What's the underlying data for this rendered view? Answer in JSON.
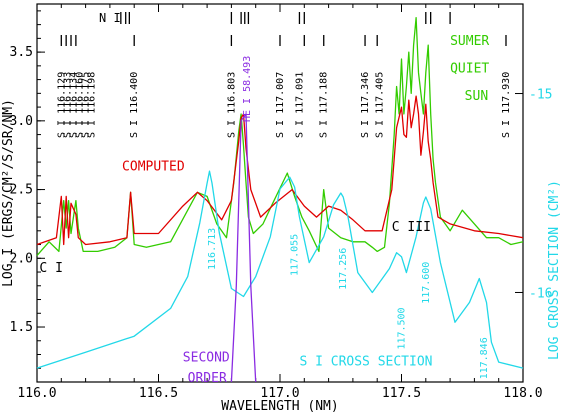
{
  "chart_data": {
    "type": "line",
    "xlabel": "WAVELENGTH (NM)",
    "ylabel_left": "LOG I (ERGS/CM²/S/SR/NM)",
    "ylabel_right": "LOG CROSS SECTION (CM²)",
    "xlim": [
      116.0,
      118.0
    ],
    "ylim_left": [
      1.1,
      3.85
    ],
    "ylim_right": [
      -16.45,
      -14.55
    ],
    "x_ticks": [
      116.0,
      116.5,
      117.0,
      117.5,
      118.0
    ],
    "x_tick_labels": [
      "116.0",
      "116.5",
      "117.0",
      "117.5",
      "118.0"
    ],
    "y_ticks_left": [
      1.5,
      2.0,
      2.5,
      3.0,
      3.5
    ],
    "y_tick_labels_left": [
      "1.5",
      "2.0",
      "2.5",
      "3.0",
      "3.5"
    ],
    "y_ticks_right": [
      -16,
      -15
    ],
    "y_tick_labels_right": [
      "-16",
      "-15"
    ],
    "colors": {
      "observed": "#33cc00",
      "computed": "#e00000",
      "cross_section": "#22d8e8",
      "second_order": "#8a2be2",
      "axes": "#000000"
    },
    "series": [
      {
        "name": "SUMER QUIET SUN",
        "axis": "left",
        "x": [
          116.0,
          116.05,
          116.09,
          116.11,
          116.12,
          116.13,
          116.14,
          116.16,
          116.17,
          116.19,
          116.25,
          116.32,
          116.37,
          116.385,
          116.4,
          116.45,
          116.55,
          116.62,
          116.66,
          116.7,
          116.74,
          116.78,
          116.81,
          116.83,
          116.84,
          116.85,
          116.86,
          116.87,
          116.89,
          116.93,
          116.97,
          117.03,
          117.06,
          117.09,
          117.12,
          117.16,
          117.18,
          117.2,
          117.25,
          117.3,
          117.35,
          117.38,
          117.4,
          117.43,
          117.45,
          117.47,
          117.48,
          117.49,
          117.5,
          117.51,
          117.52,
          117.53,
          117.54,
          117.55,
          117.56,
          117.57,
          117.58,
          117.59,
          117.6,
          117.61,
          117.62,
          117.63,
          117.64,
          117.66,
          117.7,
          117.75,
          117.8,
          117.85,
          117.9,
          117.95,
          118.0
        ],
        "y": [
          2.02,
          2.12,
          2.05,
          2.42,
          2.22,
          2.42,
          2.18,
          2.42,
          2.22,
          2.05,
          2.05,
          2.08,
          2.15,
          2.48,
          2.1,
          2.08,
          2.12,
          2.35,
          2.48,
          2.45,
          2.25,
          2.15,
          2.55,
          2.92,
          3.05,
          2.82,
          2.55,
          2.3,
          2.18,
          2.25,
          2.4,
          2.62,
          2.45,
          2.3,
          2.2,
          2.05,
          2.5,
          2.22,
          2.15,
          2.12,
          2.12,
          2.08,
          2.05,
          2.08,
          2.4,
          2.9,
          3.25,
          3.05,
          3.45,
          3.05,
          3.25,
          3.5,
          3.2,
          3.55,
          3.75,
          3.35,
          3.2,
          3.05,
          3.35,
          3.55,
          3.05,
          2.72,
          2.55,
          2.3,
          2.2,
          2.35,
          2.25,
          2.15,
          2.15,
          2.1,
          2.12
        ]
      },
      {
        "name": "COMPUTED",
        "axis": "left",
        "x": [
          116.0,
          116.08,
          116.1,
          116.11,
          116.12,
          116.13,
          116.14,
          116.16,
          116.17,
          116.2,
          116.3,
          116.37,
          116.385,
          116.4,
          116.5,
          116.6,
          116.66,
          116.7,
          116.76,
          116.8,
          116.83,
          116.84,
          116.85,
          116.86,
          116.88,
          116.92,
          116.98,
          117.05,
          117.1,
          117.15,
          117.2,
          117.25,
          117.3,
          117.35,
          117.42,
          117.46,
          117.48,
          117.5,
          117.51,
          117.52,
          117.53,
          117.54,
          117.55,
          117.56,
          117.57,
          117.58,
          117.59,
          117.6,
          117.61,
          117.62,
          117.63,
          117.65,
          117.7,
          117.8,
          117.9,
          118.0
        ],
        "y": [
          2.1,
          2.15,
          2.45,
          2.1,
          2.45,
          2.15,
          2.4,
          2.32,
          2.15,
          2.1,
          2.12,
          2.15,
          2.48,
          2.18,
          2.18,
          2.38,
          2.48,
          2.42,
          2.28,
          2.42,
          2.85,
          3.02,
          3.05,
          2.8,
          2.5,
          2.3,
          2.4,
          2.5,
          2.38,
          2.3,
          2.38,
          2.35,
          2.28,
          2.2,
          2.2,
          2.5,
          2.95,
          3.1,
          2.9,
          2.88,
          3.15,
          2.95,
          3.05,
          3.18,
          3.05,
          2.75,
          2.92,
          3.12,
          2.85,
          2.72,
          2.55,
          2.3,
          2.25,
          2.2,
          2.18,
          2.15
        ]
      },
      {
        "name": "S I CROSS SECTION",
        "axis": "right",
        "x": [
          116.0,
          116.2,
          116.4,
          116.55,
          116.62,
          116.67,
          116.7,
          116.71,
          116.72,
          116.75,
          116.8,
          116.85,
          116.9,
          116.96,
          117.0,
          117.04,
          117.06,
          117.08,
          117.12,
          117.18,
          117.22,
          117.25,
          117.26,
          117.28,
          117.32,
          117.38,
          117.45,
          117.48,
          117.5,
          117.52,
          117.56,
          117.59,
          117.6,
          117.62,
          117.66,
          117.72,
          117.78,
          117.82,
          117.85,
          117.87,
          117.9,
          118.0
        ],
        "y": [
          -16.38,
          -16.3,
          -16.22,
          -16.08,
          -15.92,
          -15.65,
          -15.45,
          -15.39,
          -15.45,
          -15.7,
          -15.98,
          -16.02,
          -15.92,
          -15.72,
          -15.48,
          -15.42,
          -15.47,
          -15.62,
          -15.85,
          -15.72,
          -15.56,
          -15.5,
          -15.52,
          -15.62,
          -15.9,
          -16.0,
          -15.88,
          -15.8,
          -15.82,
          -15.9,
          -15.72,
          -15.55,
          -15.52,
          -15.58,
          -15.85,
          -16.15,
          -16.05,
          -15.93,
          -16.05,
          -16.25,
          -16.35,
          -16.38
        ]
      },
      {
        "name": "SECOND ORDER",
        "axis": "left",
        "x": [
          116.8,
          116.82,
          116.84,
          116.86,
          116.88,
          116.9
        ],
        "y": [
          1.0,
          1.8,
          3.0,
          3.05,
          1.8,
          1.0
        ]
      }
    ],
    "annotations": [
      {
        "text": "SUMER",
        "x": 117.7,
        "y": 3.55,
        "color": "#33cc00"
      },
      {
        "text": "QUIET",
        "x": 117.7,
        "y": 3.35,
        "color": "#33cc00"
      },
      {
        "text": "SUN",
        "x": 117.76,
        "y": 3.15,
        "color": "#33cc00"
      },
      {
        "text": "COMPUTED",
        "x": 116.35,
        "y": 2.64,
        "color": "#e00000"
      },
      {
        "text": "C III",
        "x": 117.46,
        "y": 2.2,
        "color": "#000000"
      },
      {
        "text": "C I",
        "x": 116.01,
        "y": 1.9,
        "color": "#000000"
      },
      {
        "text": "SECOND",
        "x": 116.6,
        "y": 1.25,
        "color": "#8a2be2"
      },
      {
        "text": "ORDER",
        "x": 116.62,
        "y": 1.1,
        "color": "#8a2be2"
      },
      {
        "text": "S I CROSS SECTION",
        "x": 117.08,
        "y": 1.22,
        "color": "#22d8e8"
      }
    ],
    "line_labels": [
      "S I 116.129",
      "S I 116.133",
      "S I 116.134",
      "S I 116.160",
      "S I 116.175",
      "S I 116.198",
      "S I 116.400",
      "S I 116.803",
      "S I 117.007",
      "S I 117.091",
      "S I 117.188",
      "S I 117.346",
      "S I 117.405",
      "S I 117.930"
    ],
    "line_label_x": [
      116.1,
      116.125,
      116.15,
      116.175,
      116.2,
      116.225,
      116.4,
      116.8,
      117.0,
      117.08,
      117.18,
      117.35,
      117.41,
      117.93
    ],
    "he_label": "HE I 58.493",
    "he_label_x": 116.865,
    "peak_labels": [
      "116.713",
      "117.055",
      "117.256",
      "117.500",
      "117.600",
      "117.846"
    ],
    "peak_label_x": [
      116.72,
      117.06,
      117.26,
      117.5,
      117.6,
      117.84
    ],
    "peak_label_y": [
      -15.65,
      -15.68,
      -15.75,
      -16.05,
      -15.82,
      -16.2
    ],
    "header_text": "N I",
    "header_text_x": 116.3,
    "header_ticks": [
      116.345,
      116.365,
      116.38,
      116.8,
      116.84,
      116.855,
      116.87,
      117.08,
      117.1,
      117.6,
      117.62,
      117.7
    ],
    "mid_ticks": [
      116.1,
      116.12,
      116.14,
      116.16,
      116.4,
      116.8,
      117.0,
      117.1,
      117.18,
      117.35,
      117.4,
      117.93
    ]
  }
}
